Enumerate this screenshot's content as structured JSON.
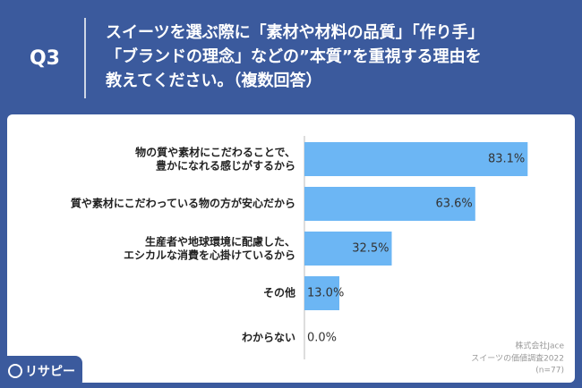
{
  "header": {
    "question": "Q3",
    "logo": "リサピー"
  },
  "chart_data": {
    "type": "hbar",
    "title": "スイーツを選ぶ際に「素材や材料の品質」「作り手」\n「ブランドの理念」などの”本質”を重視する理由を\n教えてください。（複数回答）",
    "categories": [
      "物の質や素材にこだわることで、\n豊かになれる感じがするから",
      "質や素材にこだわっている物の方が安心だから",
      "生産者や地球環境に配慮した、\nエシカルな消費を心掛けているから",
      "その他",
      "わからない"
    ],
    "values": [
      83.1,
      63.6,
      32.5,
      13.0,
      0.0
    ],
    "value_labels": [
      "83.1%",
      "63.6%",
      "32.5%",
      "13.0%",
      "0.0%"
    ],
    "color": "#6cb6f4",
    "xlim": [
      0,
      100
    ]
  },
  "source": {
    "company": "株式会社Jace",
    "survey": "スイーツの価値調査2022",
    "sample": "(n=77)"
  }
}
